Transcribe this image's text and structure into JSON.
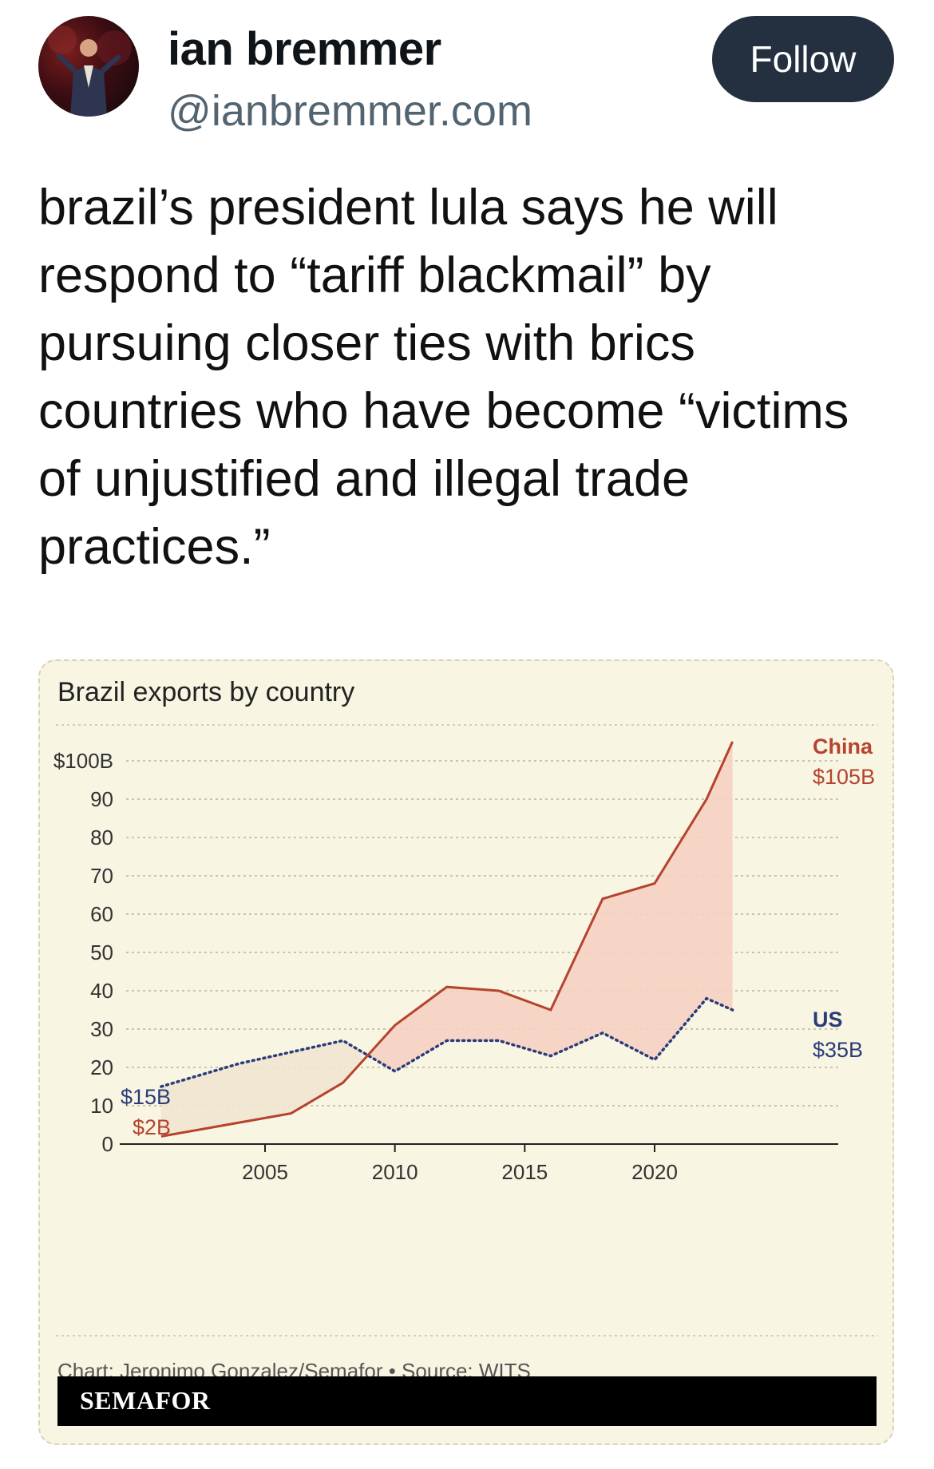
{
  "author": {
    "name": "ian bremmer",
    "handle": "@ianbremmer.com",
    "avatar_icon": "profile-photo"
  },
  "follow_label": "Follow",
  "post_text": "brazil’s president lula says he will respond to “tariff blackmail” by pursuing closer ties with brics countries who have become “victims of unjustified and illegal trade practices.”",
  "chart_data": {
    "type": "line",
    "title": "Brazil exports by country",
    "y_ticks": [
      "0",
      "10",
      "20",
      "30",
      "40",
      "50",
      "60",
      "70",
      "80",
      "90",
      "$100B"
    ],
    "x_ticks": [
      "2005",
      "2010",
      "2015",
      "2020"
    ],
    "ylim": [
      0,
      110
    ],
    "xlim": [
      2000,
      2023
    ],
    "grid": true,
    "series": [
      {
        "name": "China",
        "end_label": "$105B",
        "start_label": "$2B",
        "color": "#b5432e",
        "x": [
          2001,
          2006,
          2008,
          2010,
          2012,
          2014,
          2016,
          2018,
          2020,
          2022,
          2023
        ],
        "values": [
          2,
          8,
          16,
          31,
          41,
          40,
          35,
          64,
          68,
          90,
          105
        ]
      },
      {
        "name": "US",
        "end_label": "$35B",
        "start_label": "$15B",
        "color": "#2b3c7a",
        "style": "dotted",
        "x": [
          2001,
          2004,
          2008,
          2010,
          2012,
          2014,
          2016,
          2018,
          2020,
          2022,
          2023
        ],
        "values": [
          15,
          21,
          27,
          19,
          27,
          27,
          23,
          29,
          22,
          38,
          35
        ]
      }
    ],
    "credit": "Chart: Jeronimo Gonzalez/Semafor • Source: WITS",
    "brand": "SEMAFOR",
    "colors": {
      "background": "#f9f5e3",
      "china_fill": "#f6d2c2",
      "us_fill": "#efe5cf"
    }
  }
}
